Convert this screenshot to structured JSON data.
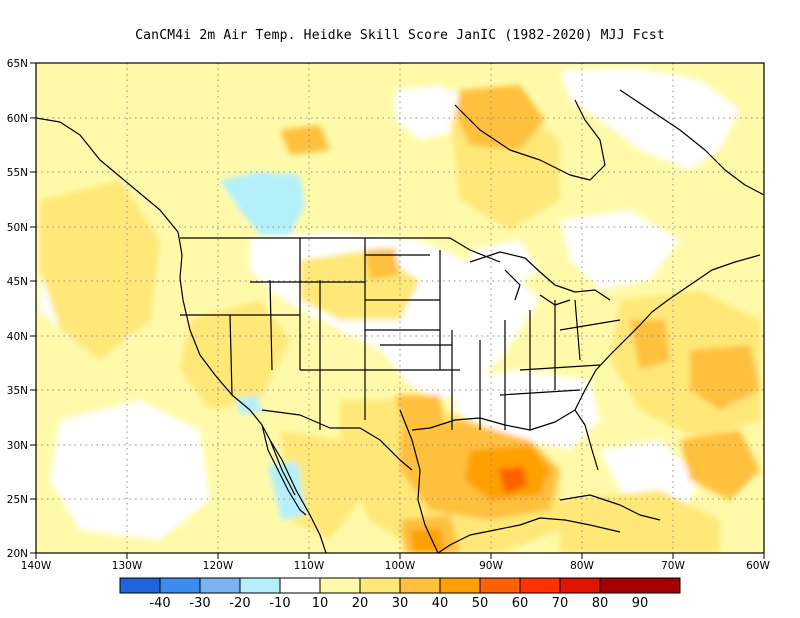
{
  "title": "CanCM4i  2m Air Temp. Heidke Skill Score JanIC (1982-2020) MJJ Fcst",
  "map": {
    "lon_range": [
      -140,
      -60
    ],
    "lat_range": [
      20,
      65
    ],
    "lat_ticks": [
      "20N",
      "25N",
      "30N",
      "35N",
      "40N",
      "45N",
      "50N",
      "55N",
      "60N",
      "65N"
    ],
    "lon_ticks": [
      "140W",
      "130W",
      "120W",
      "110W",
      "100W",
      "90W",
      "80W",
      "70W",
      "60W"
    ],
    "gridlines": "dotted"
  },
  "colorbar": {
    "labels": [
      "-40",
      "-30",
      "-20",
      "-10",
      "10",
      "20",
      "30",
      "40",
      "50",
      "60",
      "70",
      "80",
      "90"
    ],
    "colors": [
      "#1e64dc",
      "#3c8cf0",
      "#78b4f0",
      "#b4f0fa",
      "#ffffff",
      "#fffaaa",
      "#ffe878",
      "#ffc03c",
      "#ffa000",
      "#ff6000",
      "#ff3200",
      "#e11400",
      "#a50000"
    ]
  },
  "palette": {
    "light_yellow": "#fffaaa",
    "yellow": "#ffe878",
    "light_orange": "#ffc03c",
    "orange": "#ffa000",
    "dark_orange": "#ff6000",
    "light_blue": "#b4f0fa",
    "white": "#ffffff"
  }
}
